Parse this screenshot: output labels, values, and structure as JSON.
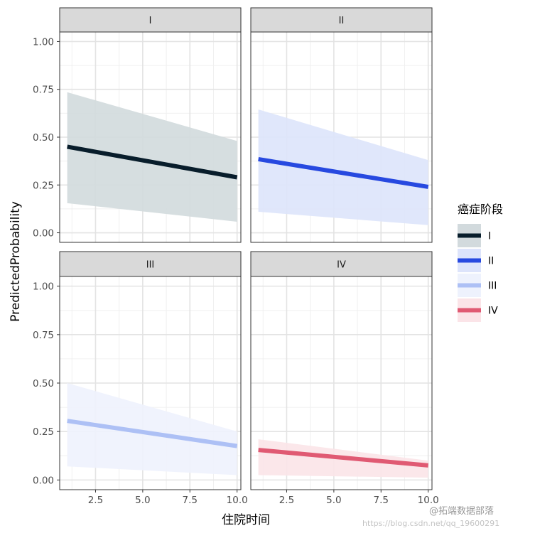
{
  "chart_data": {
    "type": "area",
    "xlabel": "住院时间",
    "ylabel": "PredictedProbability",
    "xlim": [
      0.6,
      10.2
    ],
    "ylim": [
      -0.05,
      1.05
    ],
    "x_ticks": [
      "2.5",
      "5.0",
      "7.5",
      "10.0"
    ],
    "x_tick_values": [
      2.5,
      5.0,
      7.5,
      10.0
    ],
    "y_ticks": [
      "0.00",
      "0.25",
      "0.50",
      "0.75",
      "1.00"
    ],
    "y_tick_values": [
      0.0,
      0.25,
      0.5,
      0.75,
      1.0
    ],
    "grid": true,
    "legend_position": "right",
    "legend_title": "癌症阶段",
    "series": [
      {
        "name": "I",
        "line_color": "#081d2b",
        "band_color": "#d2dadd",
        "x": [
          1,
          10
        ],
        "fit": [
          0.45,
          0.29
        ],
        "lower": [
          0.155,
          0.058
        ],
        "upper": [
          0.735,
          0.48
        ]
      },
      {
        "name": "II",
        "line_color": "#2749e0",
        "band_color": "#dde4fb",
        "x": [
          1,
          10
        ],
        "fit": [
          0.385,
          0.24
        ],
        "lower": [
          0.11,
          0.04
        ],
        "upper": [
          0.645,
          0.38
        ]
      },
      {
        "name": "III",
        "line_color": "#adc0f5",
        "band_color": "#eef2fd",
        "x": [
          1,
          10
        ],
        "fit": [
          0.305,
          0.175
        ],
        "lower": [
          0.07,
          0.025
        ],
        "upper": [
          0.5,
          0.25
        ]
      },
      {
        "name": "IV",
        "line_color": "#e05a73",
        "band_color": "#fbe4e8",
        "x": [
          1,
          10
        ],
        "fit": [
          0.155,
          0.075
        ],
        "lower": [
          0.025,
          0.012
        ],
        "upper": [
          0.21,
          0.1
        ]
      }
    ]
  },
  "watermark": {
    "text1": "@拓端数据部落",
    "text2": "https://blog.csdn.net/qq_19600291"
  }
}
